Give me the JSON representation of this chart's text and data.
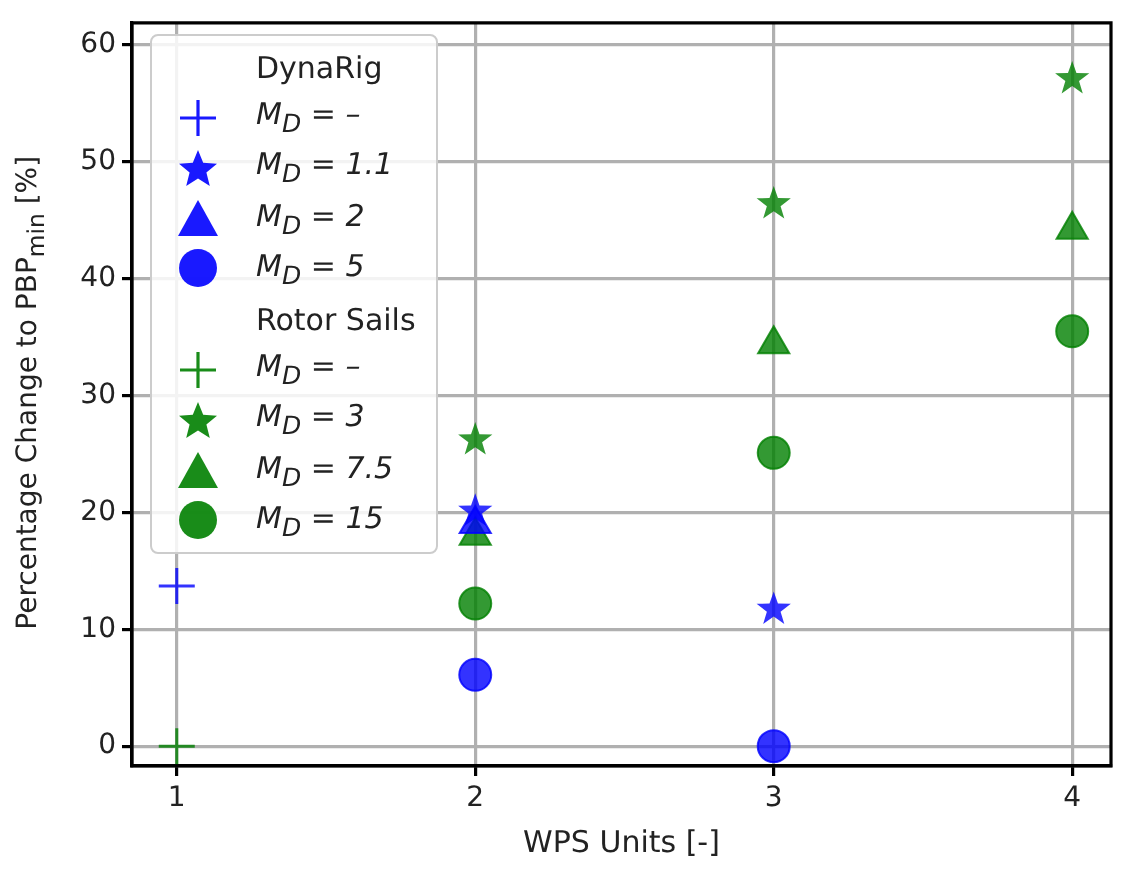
{
  "chart_data": {
    "type": "scatter",
    "xlabel": "WPS Units [-]",
    "ylabel": "Percentage Change to PBP$_{min}$  [%]",
    "xlim": [
      0.85,
      4.13
    ],
    "xticks": [
      1,
      2,
      3,
      4
    ],
    "ylim": [
      -1.7,
      61.9
    ],
    "yticks": [
      0,
      10,
      20,
      30,
      40,
      50,
      60
    ],
    "grid": true,
    "legend": "top left",
    "series": [
      {
        "name": "DynaRig",
        "marker": "none"
      },
      {
        "name": "M$_{D}$ = –",
        "color": "#0000ff",
        "marker": "cross",
        "x": [
          1
        ],
        "values": [
          13.7
        ]
      },
      {
        "name": "M$_{D}$ = 1.1",
        "color": "#0000ff",
        "marker": "star",
        "x": [
          2,
          3
        ],
        "values": [
          20.1,
          11.7
        ]
      },
      {
        "name": "M$_{D}$ = 2",
        "color": "#0000ff",
        "marker": "triangle",
        "x": [
          2
        ],
        "values": [
          19
        ]
      },
      {
        "name": "M$_{D}$ = 5",
        "color": "#0000ff",
        "marker": "circle",
        "x": [
          2,
          3
        ],
        "values": [
          6.1,
          0
        ]
      },
      {
        "name": "Rotor Sails",
        "marker": "none"
      },
      {
        "name": "M$_{D}$ = –",
        "color": "#008000",
        "marker": "cross",
        "x": [
          1
        ],
        "values": [
          0
        ]
      },
      {
        "name": "M$_{D}$ = 3",
        "color": "#008000",
        "marker": "star",
        "x": [
          2,
          3,
          4
        ],
        "values": [
          26.2,
          46.4,
          57.1
        ]
      },
      {
        "name": "M$_{D}$ = 7.5",
        "color": "#008000",
        "marker": "triangle",
        "x": [
          2,
          3,
          4
        ],
        "values": [
          18,
          34.4,
          44.2
        ]
      },
      {
        "name": "M$_{D}$ = 15",
        "color": "#008000",
        "marker": "circle",
        "x": [
          2,
          3,
          4
        ],
        "values": [
          12.2,
          25.1,
          35.5
        ]
      }
    ]
  }
}
